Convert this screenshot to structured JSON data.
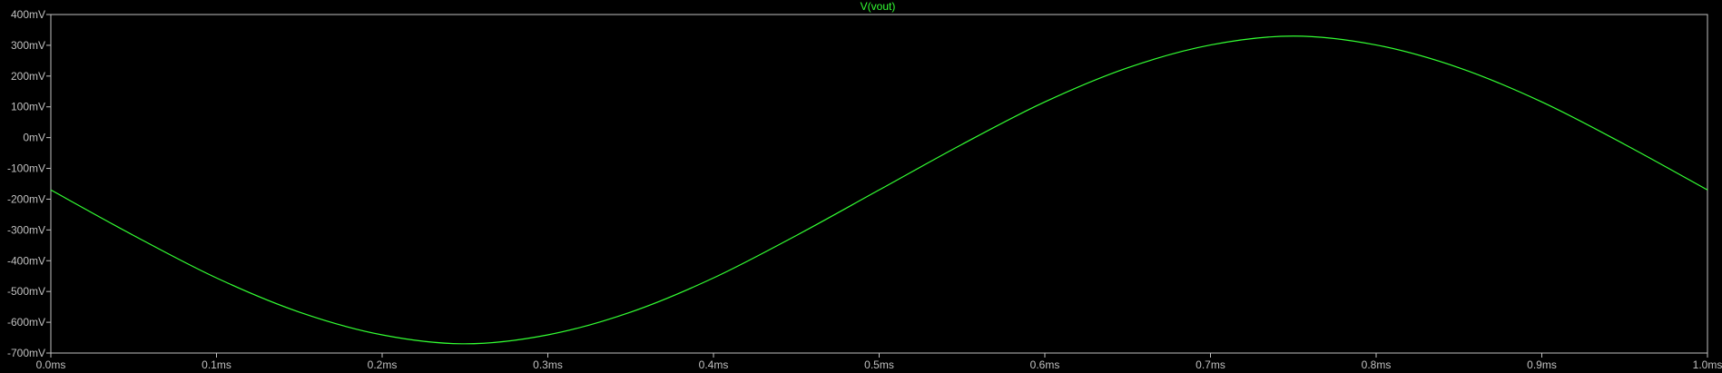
{
  "chart_data": {
    "type": "line",
    "grid": false,
    "x_unit": "ms",
    "y_unit": "mV",
    "xlim": [
      0.0,
      1.0
    ],
    "ylim": [
      -700,
      400
    ],
    "x_ticks": [
      0.0,
      0.1,
      0.2,
      0.3,
      0.4,
      0.5,
      0.6,
      0.7,
      0.8,
      0.9,
      1.0
    ],
    "x_tick_labels": [
      "0.0ms",
      "0.1ms",
      "0.2ms",
      "0.3ms",
      "0.4ms",
      "0.5ms",
      "0.6ms",
      "0.7ms",
      "0.8ms",
      "0.9ms",
      "1.0ms"
    ],
    "y_ticks": [
      400,
      300,
      200,
      100,
      0,
      -100,
      -200,
      -300,
      -400,
      -500,
      -600,
      -700
    ],
    "y_tick_labels": [
      "400mV",
      "300mV",
      "200mV",
      "100mV",
      "0mV",
      "-100mV",
      "-200mV",
      "-300mV",
      "-400mV",
      "-500mV",
      "-600mV",
      "-700mV"
    ],
    "series": [
      {
        "name": "V(vout)",
        "color": "#33ff33",
        "x": [
          0.0,
          0.05,
          0.1,
          0.15,
          0.2,
          0.25,
          0.3,
          0.35,
          0.4,
          0.45,
          0.5,
          0.55,
          0.6,
          0.65,
          0.7,
          0.75,
          0.8,
          0.85,
          0.9,
          0.95,
          1.0
        ],
        "y": [
          -170,
          -318,
          -456,
          -567,
          -641,
          -670,
          -641,
          -567,
          -456,
          -318,
          -170,
          -22,
          116,
          227,
          301,
          330,
          301,
          227,
          116,
          -22,
          -170
        ]
      }
    ]
  },
  "colors": {
    "background": "#000000",
    "axis": "#c0c0c0",
    "trace": "#33ff33"
  }
}
